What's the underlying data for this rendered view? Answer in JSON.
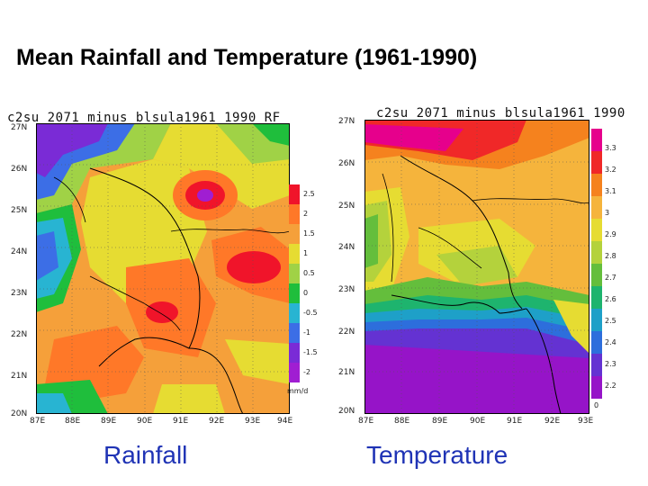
{
  "title": "Mean Rainfall and Temperature (1961-1990)",
  "captions": {
    "left": "Rainfall",
    "right": "Temperature"
  },
  "rainfall_map": {
    "header": "c2su 2071 minus blsula1961  1990 RF",
    "lat_ticks": [
      "27N",
      "26N",
      "25N",
      "24N",
      "23N",
      "22N",
      "21N",
      "20N"
    ],
    "lon_ticks": [
      "87E",
      "88E",
      "89E",
      "90E",
      "91E",
      "92E",
      "93E",
      "94E"
    ],
    "colorbar": {
      "labels": [
        "2.5",
        "2",
        "1.5",
        "1",
        "0.5",
        "0",
        "-0.5",
        "-1",
        "-1.5",
        "-2"
      ],
      "unit": "mm/d",
      "colors": [
        "#f0142a",
        "#ff7828",
        "#f5a03a",
        "#e6dc32",
        "#a0d246",
        "#1fbe3c",
        "#28b4d2",
        "#3c6ee6",
        "#7a2bd6",
        "#a01ed2"
      ]
    }
  },
  "temperature_map": {
    "header": "c2su 2071 minus blsula1961  1990",
    "lat_ticks": [
      "27N",
      "26N",
      "25N",
      "24N",
      "23N",
      "22N",
      "21N",
      "20N"
    ],
    "lon_ticks": [
      "87E",
      "88E",
      "89E",
      "90E",
      "91E",
      "92E",
      "93E"
    ],
    "colorbar": {
      "labels": [
        "3.3",
        "3.2",
        "3.1",
        "3",
        "2.9",
        "2.8",
        "2.7",
        "2.6",
        "2.5",
        "2.4",
        "2.3",
        "2.2",
        "0"
      ],
      "colors": [
        "#e6008c",
        "#f02828",
        "#f5821e",
        "#f5b43c",
        "#e6dc32",
        "#b4d23c",
        "#64be3c",
        "#1eb46e",
        "#1ea0c8",
        "#2d6edc",
        "#6432d2",
        "#9614c8"
      ]
    }
  }
}
